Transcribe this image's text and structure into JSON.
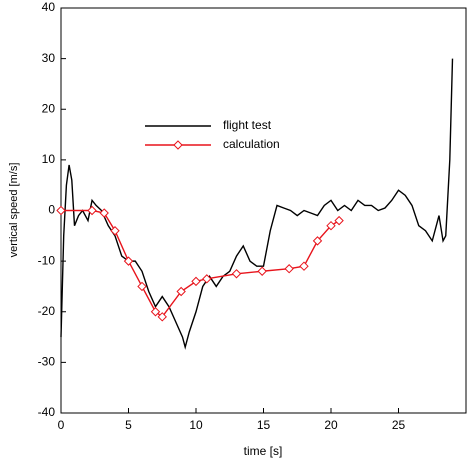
{
  "chart_data": {
    "type": "line",
    "xlabel": "time [s]",
    "ylabel": "vertical speed [m/s]",
    "xlim": [
      0,
      30
    ],
    "xticks": [
      0,
      5,
      10,
      15,
      20,
      25
    ],
    "ylim": [
      -40,
      40
    ],
    "yticks": [
      -40,
      -30,
      -20,
      -10,
      0,
      10,
      20,
      30,
      40
    ],
    "legend": "upper left",
    "series": [
      {
        "name": "flight test",
        "color": "#000000",
        "marker": "none",
        "x": [
          0,
          0.2,
          0.4,
          0.6,
          0.8,
          1.0,
          1.3,
          1.6,
          2.0,
          2.3,
          2.6,
          3.0,
          3.5,
          4.0,
          4.5,
          5.0,
          5.5,
          6.0,
          6.5,
          7.0,
          7.5,
          8.0,
          8.5,
          9.0,
          9.2,
          9.5,
          10.0,
          10.5,
          11.0,
          11.5,
          12.0,
          12.5,
          13.0,
          13.5,
          14.0,
          14.5,
          15.0,
          15.5,
          16.0,
          16.5,
          17.0,
          17.5,
          18.0,
          18.5,
          19.0,
          19.5,
          20.0,
          20.5,
          21.0,
          21.5,
          22.0,
          22.5,
          23.0,
          23.5,
          24.0,
          24.5,
          25.0,
          25.5,
          26.0,
          26.5,
          27.0,
          27.5,
          28.0,
          28.3,
          28.5,
          28.8,
          29.0
        ],
        "values": [
          -25,
          -5,
          5,
          9,
          6,
          -3,
          -1,
          0,
          -2,
          2,
          1,
          0,
          -3,
          -5,
          -9,
          -10,
          -10,
          -12,
          -16,
          -19,
          -17,
          -19,
          -22,
          -25,
          -27,
          -24,
          -20,
          -15,
          -13,
          -15,
          -13,
          -12,
          -9,
          -7,
          -10,
          -11,
          -11,
          -4,
          1,
          0.5,
          0,
          -1,
          0,
          -0.5,
          -1,
          1,
          2,
          0,
          1,
          0,
          2,
          1,
          1,
          0,
          0.5,
          2,
          4,
          3,
          1,
          -3,
          -4,
          -6,
          -1,
          -6,
          -5,
          10,
          30
        ]
      },
      {
        "name": "calculation",
        "color": "#e8141c",
        "marker": "diamond",
        "x": [
          0,
          2.3,
          3.2,
          4.0,
          5.0,
          6.0,
          7.0,
          7.5,
          8.9,
          10.0,
          10.8,
          13.0,
          14.9,
          16.9,
          18.0,
          19.0,
          20.0,
          20.6
        ],
        "values": [
          0,
          0,
          -0.5,
          -4,
          -10,
          -15,
          -20,
          -21,
          -16,
          -14,
          -13.5,
          -12.5,
          -12,
          -11.5,
          -11,
          -6,
          -3,
          -2
        ]
      }
    ]
  }
}
